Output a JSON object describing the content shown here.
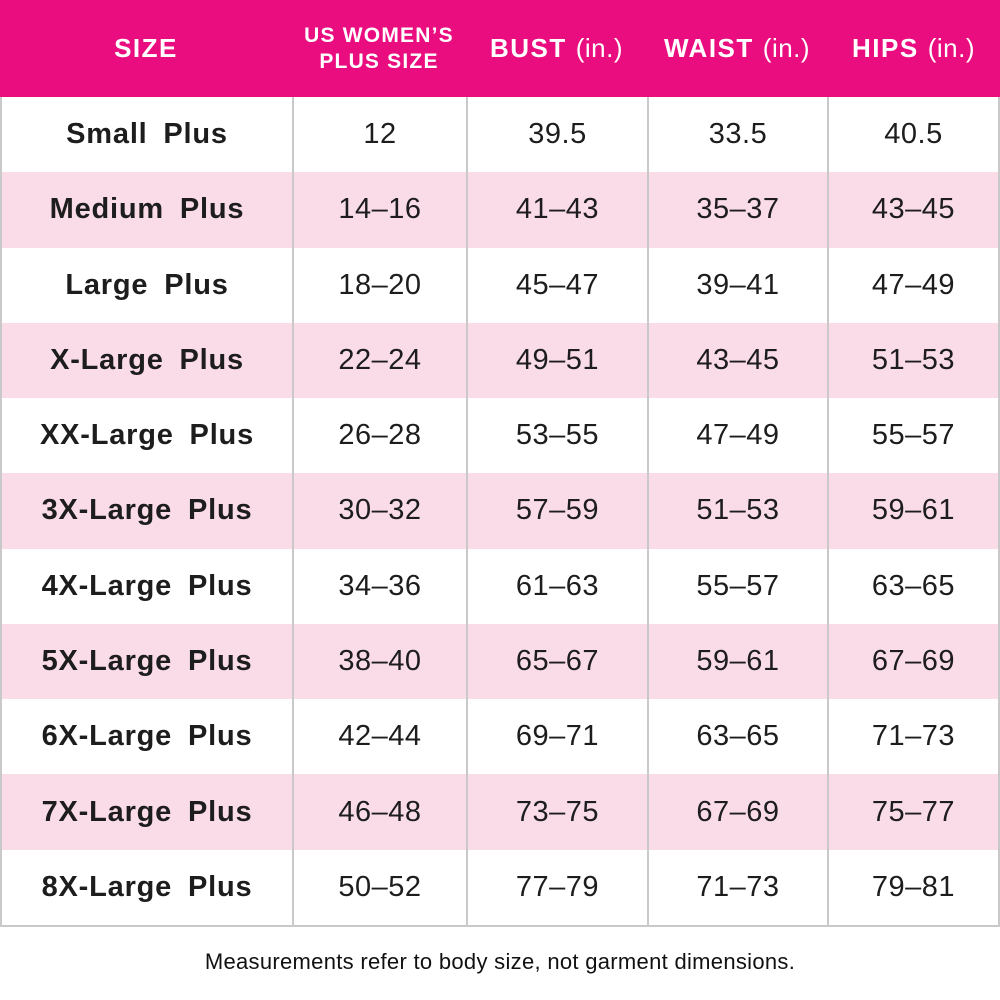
{
  "colors": {
    "header_bg": "#EA0D80",
    "row_alt": "#FADCE9",
    "border": "#C9C9C9",
    "text": "#1D1D1D"
  },
  "header": {
    "size": "SIZE",
    "us_line1": "US WOMEN’S",
    "us_line2": "PLUS SIZE",
    "bust": "BUST",
    "bust_unit": "(in.)",
    "waist": "WAIST",
    "waist_unit": "(in.)",
    "hips": "HIPS",
    "hips_unit": "(in.)"
  },
  "footer": {
    "note": "Measurements refer to body size, not garment dimensions."
  },
  "chart_data": {
    "type": "table",
    "title": "Plus size chart (US women's)",
    "columns": [
      "SIZE",
      "US WOMEN'S PLUS SIZE",
      "BUST (in.)",
      "WAIST (in.)",
      "HIPS (in.)"
    ],
    "rows": [
      [
        "Small Plus",
        "12",
        "39.5",
        "33.5",
        "40.5"
      ],
      [
        "Medium Plus",
        "14–16",
        "41–43",
        "35–37",
        "43–45"
      ],
      [
        "Large Plus",
        "18–20",
        "45–47",
        "39–41",
        "47–49"
      ],
      [
        "X-Large Plus",
        "22–24",
        "49–51",
        "43–45",
        "51–53"
      ],
      [
        "XX-Large Plus",
        "26–28",
        "53–55",
        "47–49",
        "55–57"
      ],
      [
        "3X-Large Plus",
        "30–32",
        "57–59",
        "51–53",
        "59–61"
      ],
      [
        "4X-Large Plus",
        "34–36",
        "61–63",
        "55–57",
        "63–65"
      ],
      [
        "5X-Large Plus",
        "38–40",
        "65–67",
        "59–61",
        "67–69"
      ],
      [
        "6X-Large Plus",
        "42–44",
        "69–71",
        "63–65",
        "71–73"
      ],
      [
        "7X-Large Plus",
        "46–48",
        "73–75",
        "67–69",
        "75–77"
      ],
      [
        "8X-Large Plus",
        "50–52",
        "77–79",
        "71–73",
        "79–81"
      ]
    ],
    "footnote": "Measurements refer to body size, not garment dimensions.",
    "layout": {
      "header_text_color": "#FFFFFF",
      "alternating_rows": true,
      "first_data_row_background": "#FFFFFF"
    }
  }
}
